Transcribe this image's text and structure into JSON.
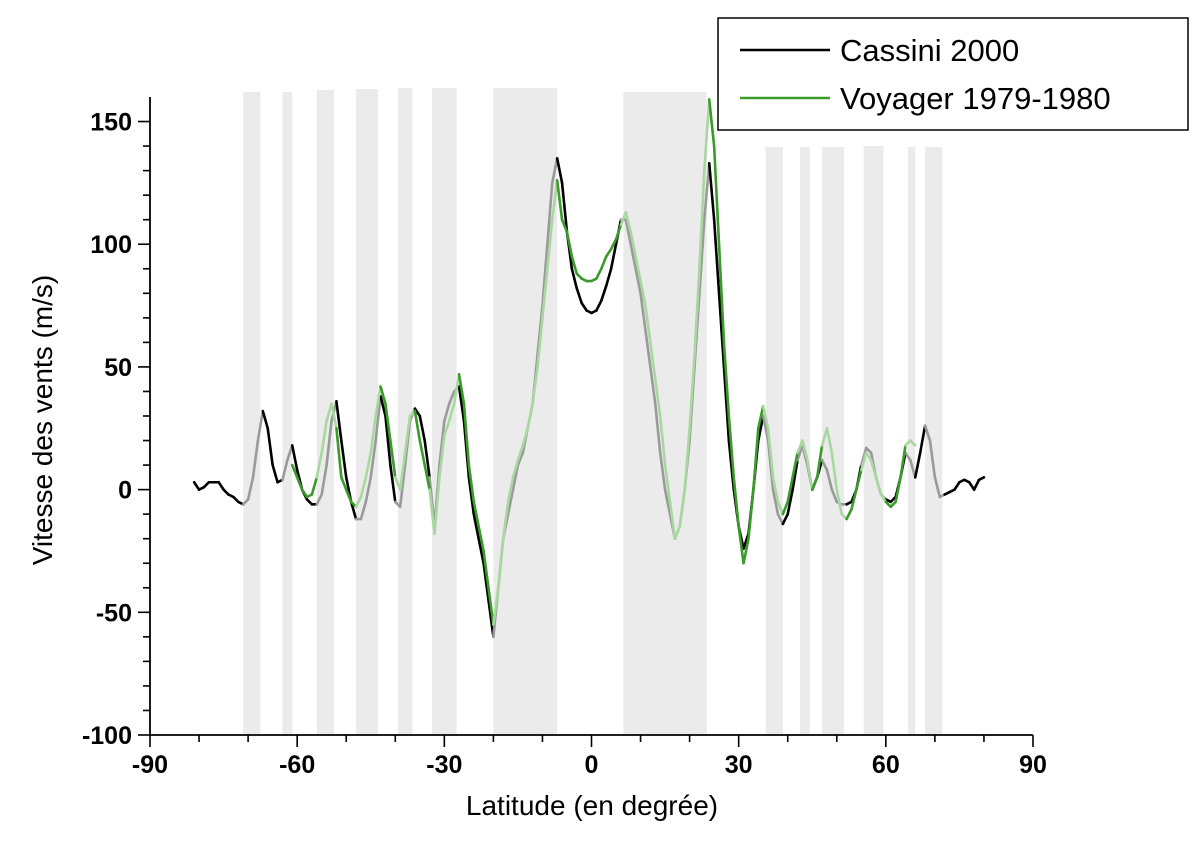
{
  "chart_data": {
    "type": "line",
    "xlabel": "Latitude   (en degrée)",
    "ylabel": "Vitesse des vents (m/s)",
    "xlim": [
      -90,
      90
    ],
    "ylim": [
      -100,
      160
    ],
    "xticks": [
      -90,
      -60,
      -30,
      0,
      30,
      60,
      90
    ],
    "yticks": [
      -100,
      -50,
      0,
      50,
      100,
      150
    ],
    "grid": false,
    "legend_position": "top-right",
    "shaded_bands": [
      [
        -71,
        -67.5
      ],
      [
        -63,
        -61
      ],
      [
        -56,
        -52.5
      ],
      [
        -48,
        -43.5
      ],
      [
        -39.5,
        -36.5
      ],
      [
        -32.5,
        -27.5
      ],
      [
        -20,
        -7
      ],
      [
        6.5,
        23.5
      ],
      [
        35.5,
        39
      ],
      [
        42.5,
        44.5
      ],
      [
        47,
        51.5
      ],
      [
        55.5,
        59.5
      ],
      [
        64.5,
        66
      ],
      [
        68,
        71.5
      ]
    ],
    "series": [
      {
        "name": "Cassini 2000",
        "color": "#000000",
        "points": [
          [
            -81,
            3
          ],
          [
            -80,
            0
          ],
          [
            -79,
            1
          ],
          [
            -78,
            3
          ],
          [
            -77,
            3
          ],
          [
            -76,
            3
          ],
          [
            -75,
            0
          ],
          [
            -74,
            -2
          ],
          [
            -73,
            -3
          ],
          [
            -72,
            -5
          ],
          [
            -71,
            -6
          ],
          [
            -70,
            -4
          ],
          [
            -69,
            5
          ],
          [
            -68,
            20
          ],
          [
            -67,
            32
          ],
          [
            -66,
            25
          ],
          [
            -65,
            10
          ],
          [
            -64,
            3
          ],
          [
            -63,
            4
          ],
          [
            -62,
            12
          ],
          [
            -61,
            18
          ],
          [
            -60,
            8
          ],
          [
            -59,
            0
          ],
          [
            -58,
            -4
          ],
          [
            -57,
            -6
          ],
          [
            -56,
            -6
          ],
          [
            -55,
            -2
          ],
          [
            -54,
            10
          ],
          [
            -53,
            28
          ],
          [
            -52,
            36
          ],
          [
            -51,
            20
          ],
          [
            -50,
            5
          ],
          [
            -49,
            -5
          ],
          [
            -48,
            -12
          ],
          [
            -47,
            -12
          ],
          [
            -46,
            -5
          ],
          [
            -45,
            5
          ],
          [
            -44,
            20
          ],
          [
            -43,
            38
          ],
          [
            -42,
            30
          ],
          [
            -41,
            10
          ],
          [
            -40,
            -5
          ],
          [
            -39,
            -7
          ],
          [
            -38,
            10
          ],
          [
            -37,
            28
          ],
          [
            -36,
            33
          ],
          [
            -35,
            30
          ],
          [
            -34,
            20
          ],
          [
            -33,
            5
          ],
          [
            -32,
            -15
          ],
          [
            -31,
            10
          ],
          [
            -30,
            28
          ],
          [
            -29,
            35
          ],
          [
            -28,
            40
          ],
          [
            -27,
            42
          ],
          [
            -26,
            28
          ],
          [
            -25,
            5
          ],
          [
            -24,
            -10
          ],
          [
            -23,
            -20
          ],
          [
            -22,
            -30
          ],
          [
            -21,
            -45
          ],
          [
            -20,
            -60
          ],
          [
            -19,
            -40
          ],
          [
            -18,
            -20
          ],
          [
            -17,
            -10
          ],
          [
            -16,
            0
          ],
          [
            -15,
            10
          ],
          [
            -14,
            15
          ],
          [
            -13,
            25
          ],
          [
            -12,
            35
          ],
          [
            -11,
            55
          ],
          [
            -10,
            75
          ],
          [
            -9,
            100
          ],
          [
            -8,
            125
          ],
          [
            -7,
            135
          ],
          [
            -6,
            125
          ],
          [
            -5,
            105
          ],
          [
            -4,
            90
          ],
          [
            -3,
            82
          ],
          [
            -2,
            76
          ],
          [
            -1,
            73
          ],
          [
            0,
            72
          ],
          [
            1,
            73
          ],
          [
            2,
            77
          ],
          [
            3,
            83
          ],
          [
            4,
            90
          ],
          [
            5,
            100
          ],
          [
            6,
            110
          ],
          [
            7,
            110
          ],
          [
            8,
            100
          ],
          [
            9,
            90
          ],
          [
            10,
            80
          ],
          [
            11,
            65
          ],
          [
            12,
            50
          ],
          [
            13,
            35
          ],
          [
            14,
            15
          ],
          [
            15,
            0
          ],
          [
            16,
            -10
          ],
          [
            17,
            -20
          ],
          [
            18,
            -15
          ],
          [
            19,
            0
          ],
          [
            20,
            20
          ],
          [
            21,
            50
          ],
          [
            22,
            80
          ],
          [
            23,
            110
          ],
          [
            24,
            133
          ],
          [
            25,
            110
          ],
          [
            26,
            80
          ],
          [
            27,
            50
          ],
          [
            28,
            20
          ],
          [
            29,
            0
          ],
          [
            30,
            -15
          ],
          [
            31,
            -24
          ],
          [
            32,
            -18
          ],
          [
            33,
            0
          ],
          [
            34,
            20
          ],
          [
            35,
            30
          ],
          [
            36,
            20
          ],
          [
            37,
            0
          ],
          [
            38,
            -10
          ],
          [
            39,
            -14
          ],
          [
            40,
            -10
          ],
          [
            41,
            0
          ],
          [
            42,
            12
          ],
          [
            43,
            18
          ],
          [
            44,
            10
          ],
          [
            45,
            0
          ],
          [
            46,
            5
          ],
          [
            47,
            12
          ],
          [
            48,
            8
          ],
          [
            49,
            0
          ],
          [
            50,
            -5
          ],
          [
            51,
            -6
          ],
          [
            52,
            -6
          ],
          [
            53,
            -5
          ],
          [
            54,
            0
          ],
          [
            55,
            10
          ],
          [
            56,
            17
          ],
          [
            57,
            15
          ],
          [
            58,
            5
          ],
          [
            59,
            -2
          ],
          [
            60,
            -4
          ],
          [
            61,
            -5
          ],
          [
            62,
            -3
          ],
          [
            63,
            5
          ],
          [
            64,
            15
          ],
          [
            65,
            12
          ],
          [
            66,
            5
          ],
          [
            67,
            15
          ],
          [
            68,
            26
          ],
          [
            69,
            20
          ],
          [
            70,
            5
          ],
          [
            71,
            -3
          ],
          [
            72,
            -2
          ],
          [
            73,
            -1
          ],
          [
            74,
            0
          ],
          [
            75,
            3
          ],
          [
            76,
            4
          ],
          [
            77,
            3
          ],
          [
            78,
            0
          ],
          [
            79,
            4
          ],
          [
            80,
            5
          ]
        ]
      },
      {
        "name": "Voyager 1979-1980",
        "color": "#3a9a2a",
        "points": [
          [
            -61,
            10
          ],
          [
            -60,
            5
          ],
          [
            -59,
            0
          ],
          [
            -58,
            -3
          ],
          [
            -57,
            -2
          ],
          [
            -56,
            5
          ],
          [
            -55,
            15
          ],
          [
            -54,
            28
          ],
          [
            -53,
            35
          ],
          [
            -52,
            25
          ],
          [
            -51,
            5
          ],
          [
            -50,
            0
          ],
          [
            -49,
            -5
          ],
          [
            -48,
            -7
          ],
          [
            -47,
            -3
          ],
          [
            -46,
            5
          ],
          [
            -45,
            15
          ],
          [
            -44,
            30
          ],
          [
            -43,
            42
          ],
          [
            -42,
            35
          ],
          [
            -41,
            20
          ],
          [
            -40,
            5
          ],
          [
            -39,
            0
          ],
          [
            -38,
            15
          ],
          [
            -37,
            30
          ],
          [
            -36,
            32
          ],
          [
            -35,
            20
          ],
          [
            -34,
            10
          ],
          [
            -33,
            0
          ],
          [
            -32,
            -18
          ],
          [
            -31,
            5
          ],
          [
            -30,
            22
          ],
          [
            -29,
            28
          ],
          [
            -28,
            35
          ],
          [
            -27,
            47
          ],
          [
            -26,
            35
          ],
          [
            -25,
            10
          ],
          [
            -24,
            -5
          ],
          [
            -23,
            -15
          ],
          [
            -22,
            -25
          ],
          [
            -21,
            -40
          ],
          [
            -20,
            -55
          ],
          [
            -19,
            -40
          ],
          [
            -18,
            -20
          ],
          [
            -17,
            -5
          ],
          [
            -16,
            5
          ],
          [
            -15,
            12
          ],
          [
            -14,
            18
          ],
          [
            -13,
            25
          ],
          [
            -12,
            35
          ],
          [
            -11,
            50
          ],
          [
            -10,
            70
          ],
          [
            -9,
            90
          ],
          [
            -8,
            110
          ],
          [
            -7,
            126
          ],
          [
            -6,
            110
          ],
          [
            -5,
            105
          ],
          [
            -4,
            95
          ],
          [
            -3,
            88
          ],
          [
            -2,
            86
          ],
          [
            -1,
            85
          ],
          [
            0,
            85
          ],
          [
            1,
            86
          ],
          [
            2,
            90
          ],
          [
            3,
            95
          ],
          [
            4,
            98
          ],
          [
            5,
            102
          ],
          [
            6,
            108
          ],
          [
            7,
            113
          ],
          [
            8,
            105
          ],
          [
            9,
            95
          ],
          [
            10,
            85
          ],
          [
            11,
            75
          ],
          [
            12,
            60
          ],
          [
            13,
            45
          ],
          [
            14,
            30
          ],
          [
            15,
            10
          ],
          [
            16,
            -5
          ],
          [
            17,
            -20
          ],
          [
            18,
            -15
          ],
          [
            19,
            0
          ],
          [
            20,
            25
          ],
          [
            21,
            55
          ],
          [
            22,
            90
          ],
          [
            23,
            130
          ],
          [
            24,
            159
          ],
          [
            25,
            140
          ],
          [
            26,
            100
          ],
          [
            27,
            60
          ],
          [
            28,
            30
          ],
          [
            29,
            5
          ],
          [
            30,
            -15
          ],
          [
            31,
            -30
          ],
          [
            32,
            -20
          ],
          [
            33,
            0
          ],
          [
            34,
            25
          ],
          [
            35,
            34
          ],
          [
            36,
            25
          ],
          [
            37,
            5
          ],
          [
            38,
            -5
          ],
          [
            39,
            -10
          ],
          [
            40,
            -5
          ],
          [
            41,
            5
          ],
          [
            42,
            15
          ],
          [
            43,
            20
          ],
          [
            44,
            12
          ],
          [
            45,
            0
          ],
          [
            46,
            5
          ],
          [
            47,
            18
          ],
          [
            48,
            25
          ],
          [
            49,
            15
          ],
          [
            50,
            0
          ],
          [
            51,
            -10
          ],
          [
            52,
            -12
          ],
          [
            53,
            -8
          ],
          [
            54,
            0
          ],
          [
            55,
            8
          ],
          [
            56,
            15
          ],
          [
            57,
            12
          ],
          [
            58,
            5
          ],
          [
            59,
            -2
          ],
          [
            60,
            -5
          ],
          [
            61,
            -7
          ],
          [
            62,
            -5
          ],
          [
            63,
            5
          ],
          [
            64,
            18
          ],
          [
            65,
            20
          ],
          [
            66,
            18
          ]
        ]
      }
    ]
  }
}
